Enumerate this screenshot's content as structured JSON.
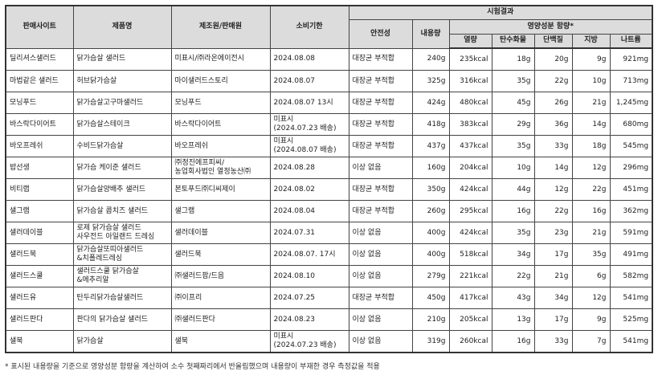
{
  "headers": {
    "site": "판매사이트",
    "product": "제품명",
    "maker": "제조원/판매원",
    "expiry": "소비기한",
    "results": "시험결과",
    "safety": "안전성",
    "content": "내용량",
    "nutrition": "영양성분 함량*",
    "kcal": "열량",
    "carb": "탄수화물",
    "protein": "단백질",
    "fat": "지방",
    "sodium": "나트륨"
  },
  "rows": [
    {
      "site": "딜리셔스샐러드",
      "product": "닭가슴살 샐러드",
      "maker": "미표시/㈜라온에이전시",
      "expiry": "2024.08.08",
      "safety": "대장균 부적합",
      "content": "240g",
      "kcal": "235kcal",
      "carb": "18g",
      "protein": "20g",
      "fat": "9g",
      "sodium": "921mg"
    },
    {
      "site": "마법같은 샐러드",
      "product": "허브닭가슴살",
      "maker": "마이샐러드스토리",
      "expiry": "2024.08.07",
      "safety": "대장균 부적합",
      "content": "325g",
      "kcal": "316kcal",
      "carb": "35g",
      "protein": "22g",
      "fat": "10g",
      "sodium": "713mg"
    },
    {
      "site": "모닝푸드",
      "product": "닭가슴살고구마샐러드",
      "maker": "모닝푸드",
      "expiry": "2024.08.07 13시",
      "safety": "대장균 부적합",
      "content": "424g",
      "kcal": "480kcal",
      "carb": "45g",
      "protein": "26g",
      "fat": "21g",
      "sodium": "1,245mg"
    },
    {
      "site": "바스락다이어트",
      "product": "닭가슴살스테이크",
      "maker": "바스락다이어트",
      "expiry": "미표시\n(2024.07.23 배송)",
      "safety": "대장균 부적합",
      "content": "418g",
      "kcal": "383kcal",
      "carb": "29g",
      "protein": "36g",
      "fat": "14g",
      "sodium": "680mg"
    },
    {
      "site": "바오프레쉬",
      "product": "수비드닭가슴살",
      "maker": "바오프레쉬",
      "expiry": "미표시\n(2024.08.07 배송)",
      "safety": "대장균 부적합",
      "content": "437g",
      "kcal": "437kcal",
      "carb": "35g",
      "protein": "33g",
      "fat": "18g",
      "sodium": "545mg"
    },
    {
      "site": "밥선생",
      "product": "닭가슴 케이준 샐러드",
      "maker": "㈜정진에프피씨/\n농업회사법인 열정농산㈜",
      "expiry": "2024.08.28",
      "safety": "이상 없음",
      "content": "160g",
      "kcal": "204kcal",
      "carb": "10g",
      "protein": "14g",
      "fat": "12g",
      "sodium": "296mg"
    },
    {
      "site": "비티랩",
      "product": "닭가슴살양배추 샐러드",
      "maker": "본토푸드㈜디씨제이",
      "expiry": "2024.08.02",
      "safety": "대장균 부적합",
      "content": "350g",
      "kcal": "424kcal",
      "carb": "44g",
      "protein": "12g",
      "fat": "22g",
      "sodium": "451mg"
    },
    {
      "site": "샐그램",
      "product": "닭가슴살 콥치즈 샐러드",
      "maker": "샐그램",
      "expiry": "2024.08.04",
      "safety": "대장균 부적합",
      "content": "260g",
      "kcal": "295kcal",
      "carb": "16g",
      "protein": "22g",
      "fat": "16g",
      "sodium": "362mg"
    },
    {
      "site": "샐러데이블",
      "product": "로제 닭가슴살 샐러드\n사우전드 아일랜드 드레싱",
      "maker": "샐러데이블",
      "expiry": "2024.07.31",
      "safety": "이상 없음",
      "content": "400g",
      "kcal": "424kcal",
      "carb": "35g",
      "protein": "23g",
      "fat": "21g",
      "sodium": "591mg"
    },
    {
      "site": "샐러드북",
      "product": "닭가슴살또띠아샐러드\n&치폴레드레싱",
      "maker": "샐러드북",
      "expiry": "2024.08.07. 17시",
      "safety": "이상 없음",
      "content": "400g",
      "kcal": "518kcal",
      "carb": "34g",
      "protein": "17g",
      "fat": "35g",
      "sodium": "491mg"
    },
    {
      "site": "샐러드스쿨",
      "product": "샐러드스쿨 닭가슴살\n&메추리알",
      "maker": "㈜샐러드팜/드음",
      "expiry": "2024.08.10",
      "safety": "이상 없음",
      "content": "279g",
      "kcal": "221kcal",
      "carb": "22g",
      "protein": "21g",
      "fat": "6g",
      "sodium": "582mg"
    },
    {
      "site": "샐러드유",
      "product": "탄두리닭가슴살샐러드",
      "maker": "㈜이프리",
      "expiry": "2024.07.25",
      "safety": "대장균 부적합",
      "content": "450g",
      "kcal": "417kcal",
      "carb": "43g",
      "protein": "34g",
      "fat": "12g",
      "sodium": "541mg"
    },
    {
      "site": "샐러드판다",
      "product": "판다의 닭가슴살 샐러드",
      "maker": "㈜샐러드판다",
      "expiry": "2024.08.23",
      "safety": "이상 없음",
      "content": "210g",
      "kcal": "205kcal",
      "carb": "13g",
      "protein": "17g",
      "fat": "9g",
      "sodium": "525mg"
    },
    {
      "site": "샐북",
      "product": "닭가슴살",
      "maker": "샐북",
      "expiry": "미표시\n(2024.07.23 배송)",
      "safety": "이상 없음",
      "content": "319g",
      "kcal": "260kcal",
      "carb": "16g",
      "protein": "33g",
      "fat": "7g",
      "sodium": "541mg"
    }
  ],
  "footnote": "* 표시된 내용량을 기준으로 영양성분 함량을 계산하여 소수 첫째짜리에서 반올림했으며 내용량이 부재한 경우 측정값을 적용"
}
